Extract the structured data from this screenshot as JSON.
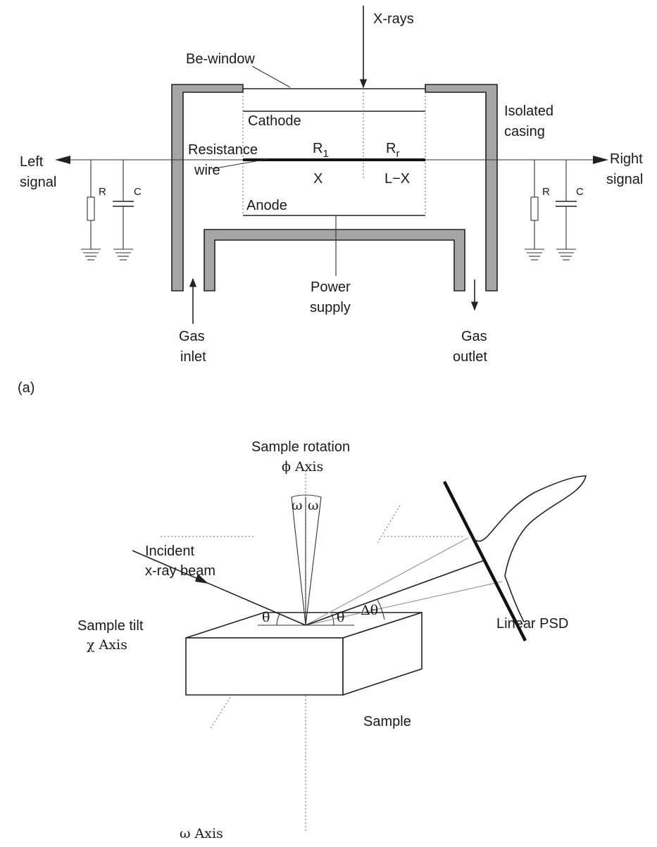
{
  "panel_a": {
    "xrays": "X-rays",
    "be_window": "Be-window",
    "cathode": "Cathode",
    "isolated_casing": [
      "Isolated",
      "casing"
    ],
    "resistance_wire": [
      "Resistance",
      "wire"
    ],
    "r1": "R",
    "r1_sub": "1",
    "rr": "R",
    "rr_sub": "r",
    "x": "X",
    "l_minus_x": "L−X",
    "anode": "Anode",
    "left_signal": [
      "Left",
      "signal"
    ],
    "right_signal": [
      "Right",
      "signal"
    ],
    "resistor": "R",
    "capacitor": "C",
    "power_supply": [
      "Power",
      "supply"
    ],
    "gas_inlet": [
      "Gas",
      "inlet"
    ],
    "gas_outlet": [
      "Gas",
      "outlet"
    ],
    "panel_label": "(a)"
  },
  "panel_b": {
    "sample_rotation": "Sample rotation",
    "phi_axis": "ϕ Axis",
    "omega": "ω",
    "incident_beam": [
      "Incident",
      "x-ray beam"
    ],
    "delta_theta": "Δθ",
    "theta": "θ",
    "sample_tilt": "Sample tilt",
    "chi_axis": "χ Axis",
    "linear_psd": "Linear PSD",
    "sample": "Sample",
    "omega_axis": "ω Axis"
  }
}
